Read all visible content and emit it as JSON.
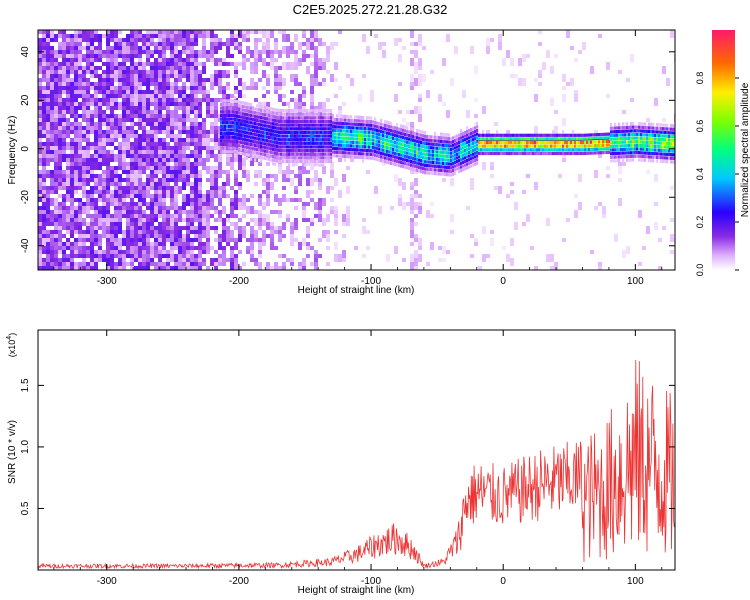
{
  "figure": {
    "title": "C2E5.2025.272.21.28.G32"
  },
  "chart_data": [
    {
      "type": "heatmap",
      "title": "C2E5.2025.272.21.28.G32",
      "xlabel": "Height of straight line (km)",
      "ylabel": "Frequency (Hz)",
      "xlim": [
        -352,
        130
      ],
      "ylim": [
        -50,
        49
      ],
      "x_ticks": [
        -300,
        -200,
        -100,
        0,
        100
      ],
      "x_tick_labels": [
        "-300",
        "-200",
        "-100",
        "0",
        "100"
      ],
      "y_ticks": [
        -40,
        -20,
        0,
        20,
        40
      ],
      "y_tick_labels": [
        "-40",
        "-20",
        "0",
        "20",
        "40"
      ],
      "colorbar": {
        "label": "Normalized spectral amplitude",
        "range": [
          0,
          1
        ],
        "ticks": [
          0.0,
          0.2,
          0.4,
          0.6,
          0.8
        ],
        "tick_labels": [
          "0.0",
          "0.2",
          "0.4",
          "0.6",
          "0.8"
        ],
        "colormap": "rainbow"
      },
      "ridge": {
        "description_points": [
          {
            "x": -205,
            "y": 9
          },
          {
            "x": -170,
            "y": 5
          },
          {
            "x": -130,
            "y": 5
          },
          {
            "x": -100,
            "y": 4
          },
          {
            "x": -80,
            "y": 1
          },
          {
            "x": -60,
            "y": -2
          },
          {
            "x": -40,
            "y": -3
          },
          {
            "x": -20,
            "y": 2
          },
          {
            "x": 0,
            "y": 2
          },
          {
            "x": 60,
            "y": 2
          },
          {
            "x": 100,
            "y": 3
          },
          {
            "x": 130,
            "y": 2
          }
        ]
      }
    },
    {
      "type": "line",
      "xlabel": "Height of straight line (km)",
      "ylabel": "SNR (10 * v/v)",
      "y_multiplier": "(x10",
      "y_multiplier_exp": "4",
      "y_multiplier_close": ")",
      "xlim": [
        -352,
        130
      ],
      "ylim": [
        0,
        1.95
      ],
      "x_ticks": [
        -300,
        -200,
        -100,
        0,
        100
      ],
      "x_tick_labels": [
        "-300",
        "-200",
        "-100",
        "0",
        "100"
      ],
      "y_ticks": [
        0.5,
        1.0,
        1.5
      ],
      "y_tick_labels": [
        "0.5",
        "1.0",
        "1.5"
      ],
      "series": [
        {
          "color": "#ee3333",
          "envelope": [
            {
              "x": -352,
              "y": 0.05
            },
            {
              "x": -250,
              "y": 0.05
            },
            {
              "x": -170,
              "y": 0.06
            },
            {
              "x": -130,
              "y": 0.1
            },
            {
              "x": -110,
              "y": 0.2
            },
            {
              "x": -95,
              "y": 0.32
            },
            {
              "x": -80,
              "y": 0.4
            },
            {
              "x": -68,
              "y": 0.25
            },
            {
              "x": -60,
              "y": 0.05
            },
            {
              "x": -45,
              "y": 0.1
            },
            {
              "x": -35,
              "y": 0.35
            },
            {
              "x": -28,
              "y": 0.8
            },
            {
              "x": -20,
              "y": 0.9
            },
            {
              "x": 0,
              "y": 0.85
            },
            {
              "x": 30,
              "y": 1.0
            },
            {
              "x": 55,
              "y": 1.06
            },
            {
              "x": 75,
              "y": 1.2
            },
            {
              "x": 90,
              "y": 1.5
            },
            {
              "x": 100,
              "y": 1.75
            },
            {
              "x": 115,
              "y": 1.6
            },
            {
              "x": 130,
              "y": 1.4
            }
          ]
        }
      ]
    }
  ]
}
